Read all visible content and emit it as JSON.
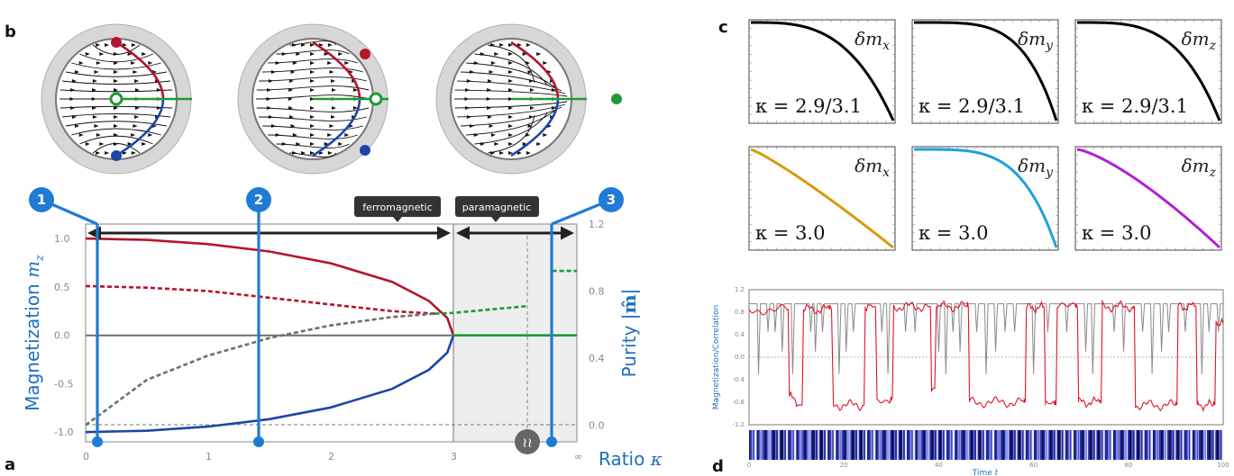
{
  "panel_labels": {
    "a": "a",
    "b": "b",
    "c": "c",
    "d": "d"
  },
  "colors": {
    "red": "#b5142b",
    "blue": "#1e46a8",
    "green": "#1f9a37",
    "gray": "#6e6e6e",
    "marker": "#1f7bd6",
    "orange": "#d99a0e",
    "cyan": "#1ea0dc",
    "purple": "#b21fd4",
    "trace_red": "#e0142c",
    "trace_gray": "#8a8a8a"
  },
  "chart_data": [
    {
      "id": "a",
      "type": "line",
      "ylabel": "Magnetization m_z",
      "ylabel_main": "Magnetization ",
      "ylabel_var": "m",
      "ylabel_sub": "z",
      "y2label": "Purity |m̂|",
      "y2label_main": "Purity |",
      "y2label_var": "m̂",
      "y2label_end": "|",
      "xlabel": "Ratio κ",
      "xticks": [
        "0",
        "1",
        "2",
        "3",
        "∞"
      ],
      "yticks": [
        "1.0",
        "0.5",
        "0.0",
        "-0.5",
        "-1.0"
      ],
      "y2ticks": [
        "1.2",
        "0.8",
        "0.4",
        "0.0"
      ],
      "ylim": [
        -1.1,
        1.15
      ],
      "y2lim": [
        -0.1,
        1.2
      ],
      "regions": [
        {
          "label": "ferromagnetic",
          "from": 0,
          "to": 3
        },
        {
          "label": "paramagnetic",
          "from": 3,
          "to": "∞",
          "shaded": true
        }
      ],
      "markers": [
        {
          "label": "1",
          "kappa": 0.1
        },
        {
          "label": "2",
          "kappa": 1.4
        },
        {
          "label": "3",
          "kappa": "∞"
        }
      ],
      "break_symbol": "≀≀",
      "series": [
        {
          "color": "red",
          "style": "solid",
          "points": [
            [
              0,
              1.0
            ],
            [
              0.5,
              0.986
            ],
            [
              1,
              0.943
            ],
            [
              1.5,
              0.866
            ],
            [
              2,
              0.745
            ],
            [
              2.5,
              0.553
            ],
            [
              2.8,
              0.356
            ],
            [
              2.95,
              0.18
            ],
            [
              3,
              0.0
            ]
          ]
        },
        {
          "color": "blue",
          "style": "solid",
          "points": [
            [
              0,
              -1.0
            ],
            [
              0.5,
              -0.986
            ],
            [
              1,
              -0.943
            ],
            [
              1.5,
              -0.866
            ],
            [
              2,
              -0.745
            ],
            [
              2.5,
              -0.553
            ],
            [
              2.8,
              -0.356
            ],
            [
              2.95,
              -0.18
            ],
            [
              3,
              0.0
            ]
          ]
        },
        {
          "color": "red",
          "style": "dotted",
          "axis": "right",
          "points": [
            [
              0,
              0.83
            ],
            [
              0.5,
              0.82
            ],
            [
              1,
              0.8
            ],
            [
              1.5,
              0.76
            ],
            [
              2,
              0.72
            ],
            [
              2.5,
              0.68
            ],
            [
              2.85,
              0.665
            ]
          ]
        },
        {
          "color": "gray",
          "style": "dotted",
          "axis": "right",
          "points": [
            [
              0,
              0.0
            ],
            [
              0.5,
              0.27
            ],
            [
              1,
              0.415
            ],
            [
              1.5,
              0.52
            ],
            [
              2,
              0.595
            ],
            [
              2.5,
              0.645
            ],
            [
              2.85,
              0.665
            ]
          ]
        },
        {
          "color": "green",
          "style": "dotted",
          "axis": "right",
          "points": [
            [
              2.85,
              0.665
            ],
            [
              3,
              0.67
            ],
            [
              3.3,
              0.69
            ],
            [
              3.6,
              0.71
            ]
          ]
        },
        {
          "color": "green",
          "style": "dotted",
          "axis": "right",
          "points": [
            [
              3.8,
              0.92
            ],
            [
              3.85,
              0.92
            ],
            [
              4,
              0.92
            ]
          ]
        },
        {
          "color": "gray",
          "style": "solid",
          "points": [
            [
              0,
              0.0
            ],
            [
              3,
              0.0
            ]
          ]
        },
        {
          "color": "green",
          "style": "solid",
          "points": [
            [
              3,
              0.0
            ],
            [
              4,
              0.0
            ]
          ]
        }
      ]
    },
    {
      "id": "c",
      "type": "line",
      "panels": [
        {
          "label_var": "δm",
          "label_sub": "x",
          "kappa_text": "κ = 2.9/3.1",
          "color": "black",
          "shape": "concave",
          "k": 3.2
        },
        {
          "label_var": "δm",
          "label_sub": "y",
          "kappa_text": "κ = 2.9/3.1",
          "color": "black",
          "shape": "concave",
          "k": 4.5
        },
        {
          "label_var": "δm",
          "label_sub": "z",
          "kappa_text": "κ = 2.9/3.1",
          "color": "black",
          "shape": "concave",
          "k": 3.6
        },
        {
          "label_var": "δm",
          "label_sub": "x",
          "kappa_text": "κ = 3.0",
          "color": "orange",
          "shape": "linear",
          "k": 1.15
        },
        {
          "label_var": "δm",
          "label_sub": "y",
          "kappa_text": "κ = 3.0",
          "color": "cyan",
          "shape": "concave",
          "k": 4.2
        },
        {
          "label_var": "δm",
          "label_sub": "z",
          "kappa_text": "κ = 3.0",
          "color": "purple",
          "shape": "linear",
          "k": 1.35
        }
      ]
    },
    {
      "id": "d",
      "type": "line",
      "ylabel": "Magnetization/Correlation",
      "xlabel": "Time t",
      "xlabel_main": "Time ",
      "xlabel_var": "t",
      "xticks": [
        "0",
        "20",
        "40",
        "60",
        "80",
        "100"
      ],
      "yticks": [
        "1.2",
        "0.8",
        "0.4",
        "0.0",
        "-0.4",
        "-0.8",
        "-1.2"
      ],
      "xlim": [
        0,
        100
      ],
      "ylim": [
        -1.2,
        1.2
      ],
      "series": [
        {
          "name": "magnetization",
          "color": "trace_red",
          "segments": [
            [
              0,
              0.85
            ],
            [
              8,
              0.85
            ],
            [
              8.5,
              -0.7
            ],
            [
              10,
              -0.85
            ],
            [
              11.5,
              0.85
            ],
            [
              17,
              0.85
            ],
            [
              17.8,
              -0.85
            ],
            [
              24,
              -0.85
            ],
            [
              24.5,
              0.9
            ],
            [
              26,
              0.9
            ],
            [
              27,
              -0.75
            ],
            [
              30,
              -0.7
            ],
            [
              30.5,
              0.9
            ],
            [
              38,
              0.9
            ],
            [
              38.5,
              -0.55
            ],
            [
              39.5,
              0.9
            ],
            [
              46,
              0.9
            ],
            [
              46.5,
              -0.8
            ],
            [
              58,
              -0.8
            ],
            [
              58.5,
              0.88
            ],
            [
              62,
              0.88
            ],
            [
              62.5,
              -0.85
            ],
            [
              64.5,
              -0.85
            ],
            [
              65,
              0.88
            ],
            [
              69,
              0.88
            ],
            [
              69.5,
              -0.8
            ],
            [
              74,
              -0.8
            ],
            [
              74.5,
              0.9
            ],
            [
              81,
              0.9
            ],
            [
              81.5,
              -0.85
            ],
            [
              90,
              -0.85
            ],
            [
              90.5,
              0.9
            ],
            [
              94,
              0.9
            ],
            [
              94.5,
              -0.85
            ],
            [
              98,
              -0.85
            ],
            [
              98.5,
              0.6
            ],
            [
              100,
              0.6
            ]
          ]
        },
        {
          "name": "correlation",
          "color": "trace_gray",
          "spikes": [
            2,
            4,
            5.5,
            7,
            9.2,
            13,
            14,
            15.5,
            19,
            20.5,
            22,
            28,
            29.3,
            33,
            35,
            40,
            41.5,
            43,
            44.5,
            48,
            50,
            52,
            54,
            56,
            60,
            63,
            67,
            71,
            72.5,
            77,
            79,
            83,
            85,
            87,
            88.5,
            92,
            95.5,
            97,
            99
          ]
        }
      ]
    }
  ]
}
